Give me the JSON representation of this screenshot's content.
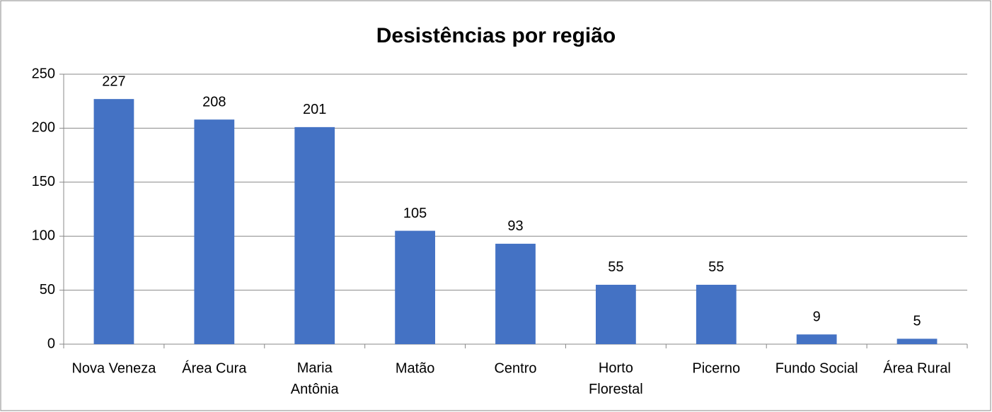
{
  "chart_data": {
    "type": "bar",
    "title": "Desistências por região",
    "categories": [
      "Nova Veneza",
      "Área Cura",
      "Maria\nAntônia",
      "Matão",
      "Centro",
      "Horto\nFlorestal",
      "Picerno",
      "Fundo Social",
      "Área Rural"
    ],
    "values": [
      227,
      208,
      201,
      105,
      93,
      55,
      55,
      9,
      5
    ],
    "color": "#4472c4",
    "ylim": [
      0,
      250
    ],
    "yticks": [
      0,
      50,
      100,
      150,
      200,
      250
    ],
    "grid": true
  }
}
